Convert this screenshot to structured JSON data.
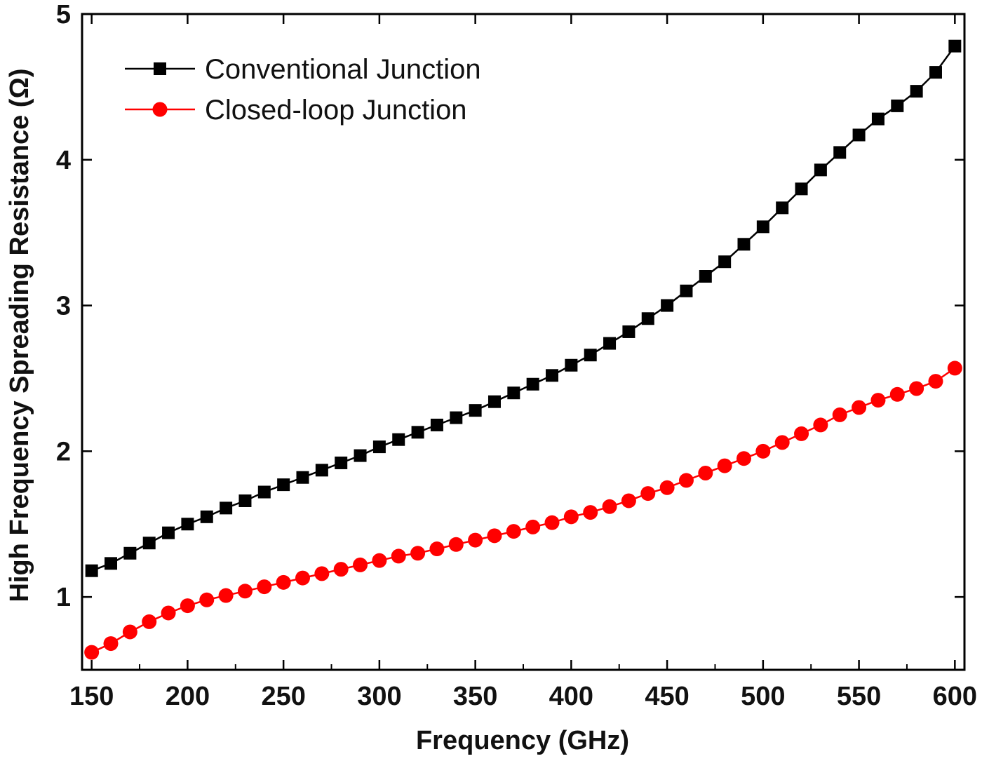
{
  "chart_data": {
    "type": "line",
    "xlabel": "Frequency (GHz)",
    "ylabel": "High Frequency Spreading Resistance (Ω)",
    "xlim": [
      145,
      605
    ],
    "ylim": [
      0.5,
      5.0
    ],
    "x_ticks": [
      150,
      200,
      250,
      300,
      350,
      400,
      450,
      500,
      550,
      600
    ],
    "x_tick_labels": [
      "150",
      "200",
      "250",
      "300",
      "350",
      "400",
      "450",
      "500",
      "550",
      "600"
    ],
    "y_ticks": [
      1,
      2,
      3,
      4,
      5
    ],
    "y_tick_labels": [
      "1",
      "2",
      "3",
      "4",
      "5"
    ],
    "grid": false,
    "legend_position": "top-left",
    "x": [
      150,
      160,
      170,
      180,
      190,
      200,
      210,
      220,
      230,
      240,
      250,
      260,
      270,
      280,
      290,
      300,
      310,
      320,
      330,
      340,
      350,
      360,
      370,
      380,
      390,
      400,
      410,
      420,
      430,
      440,
      450,
      460,
      470,
      480,
      490,
      500,
      510,
      520,
      530,
      540,
      550,
      560,
      570,
      580,
      590,
      600
    ],
    "series": [
      {
        "name": "Conventional Junction",
        "color": "#000000",
        "marker": "square",
        "values": [
          1.18,
          1.23,
          1.3,
          1.37,
          1.44,
          1.5,
          1.55,
          1.61,
          1.66,
          1.72,
          1.77,
          1.82,
          1.87,
          1.92,
          1.97,
          2.03,
          2.08,
          2.13,
          2.18,
          2.23,
          2.28,
          2.34,
          2.4,
          2.46,
          2.52,
          2.59,
          2.66,
          2.74,
          2.82,
          2.91,
          3.0,
          3.1,
          3.2,
          3.3,
          3.42,
          3.54,
          3.67,
          3.8,
          3.93,
          4.05,
          4.17,
          4.28,
          4.37,
          4.47,
          4.6,
          4.78
        ]
      },
      {
        "name": "Closed-loop Junction",
        "color": "#ff0000",
        "marker": "circle",
        "values": [
          0.62,
          0.68,
          0.76,
          0.83,
          0.89,
          0.94,
          0.98,
          1.01,
          1.04,
          1.07,
          1.1,
          1.13,
          1.16,
          1.19,
          1.22,
          1.25,
          1.28,
          1.3,
          1.33,
          1.36,
          1.39,
          1.42,
          1.45,
          1.48,
          1.51,
          1.55,
          1.58,
          1.62,
          1.66,
          1.71,
          1.75,
          1.8,
          1.85,
          1.9,
          1.95,
          2.0,
          2.06,
          2.12,
          2.18,
          2.25,
          2.3,
          2.35,
          2.39,
          2.43,
          2.48,
          2.57
        ]
      }
    ]
  }
}
